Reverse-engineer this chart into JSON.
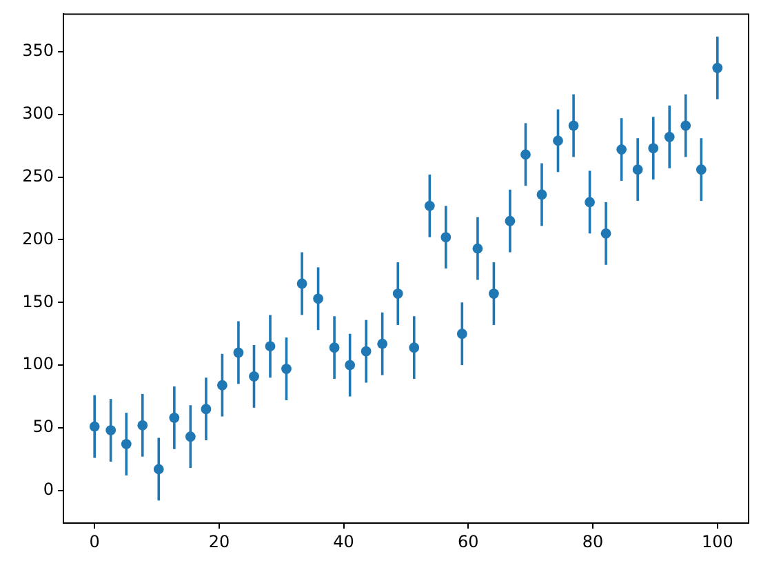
{
  "chart_data": {
    "type": "scatter",
    "x": [
      0,
      2.6,
      5.1,
      7.7,
      10.3,
      12.8,
      15.4,
      17.9,
      20.5,
      23.1,
      25.6,
      28.2,
      30.8,
      33.3,
      35.9,
      38.5,
      41.0,
      43.6,
      46.2,
      48.7,
      51.3,
      53.8,
      56.4,
      59.0,
      61.5,
      64.1,
      66.7,
      69.2,
      71.8,
      74.4,
      76.9,
      79.5,
      82.1,
      84.6,
      87.2,
      89.7,
      92.3,
      94.9,
      97.4,
      100
    ],
    "values": [
      51,
      48,
      37,
      52,
      17,
      58,
      43,
      65,
      84,
      110,
      91,
      115,
      97,
      165,
      153,
      114,
      100,
      111,
      117,
      157,
      114,
      227,
      202,
      125,
      193,
      157,
      215,
      268,
      236,
      279,
      291,
      230,
      205,
      272,
      256,
      273,
      282,
      291,
      256,
      337
    ],
    "errors": [
      25,
      25,
      25,
      25,
      25,
      25,
      25,
      25,
      25,
      25,
      25,
      25,
      25,
      25,
      25,
      25,
      25,
      25,
      25,
      25,
      25,
      25,
      25,
      25,
      25,
      25,
      25,
      25,
      25,
      25,
      25,
      25,
      25,
      25,
      25,
      25,
      25,
      25,
      25,
      25
    ],
    "color": "#1f77b4",
    "marker": "circle",
    "xlim": [
      -5,
      105
    ],
    "xticks": [
      0,
      20,
      40,
      60,
      80,
      100
    ],
    "ylim": [
      -26,
      380
    ],
    "yticks": [
      0,
      50,
      100,
      150,
      200,
      250,
      300,
      350
    ]
  }
}
